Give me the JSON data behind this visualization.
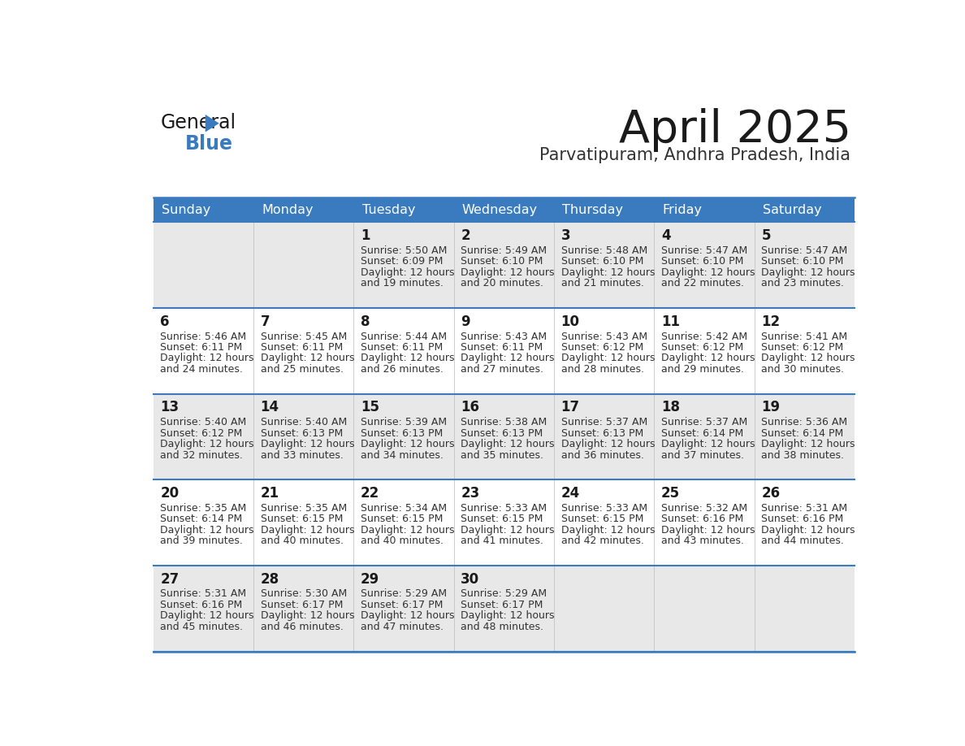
{
  "title": "April 2025",
  "subtitle": "Parvatipuram, Andhra Pradesh, India",
  "header_color": "#3a7bbf",
  "header_text_color": "#ffffff",
  "row_bg_colors": [
    "#e8e8e8",
    "#ffffff",
    "#e8e8e8",
    "#ffffff",
    "#e8e8e8"
  ],
  "border_color": "#3a7bbf",
  "title_color": "#1a1a1a",
  "subtitle_color": "#333333",
  "day_names": [
    "Sunday",
    "Monday",
    "Tuesday",
    "Wednesday",
    "Thursday",
    "Friday",
    "Saturday"
  ],
  "weeks": [
    [
      {
        "day": "",
        "sunrise": "",
        "sunset": "",
        "daylight": ""
      },
      {
        "day": "",
        "sunrise": "",
        "sunset": "",
        "daylight": ""
      },
      {
        "day": "1",
        "sunrise": "5:50 AM",
        "sunset": "6:09 PM",
        "daylight": "19 minutes."
      },
      {
        "day": "2",
        "sunrise": "5:49 AM",
        "sunset": "6:10 PM",
        "daylight": "20 minutes."
      },
      {
        "day": "3",
        "sunrise": "5:48 AM",
        "sunset": "6:10 PM",
        "daylight": "21 minutes."
      },
      {
        "day": "4",
        "sunrise": "5:47 AM",
        "sunset": "6:10 PM",
        "daylight": "22 minutes."
      },
      {
        "day": "5",
        "sunrise": "5:47 AM",
        "sunset": "6:10 PM",
        "daylight": "23 minutes."
      }
    ],
    [
      {
        "day": "6",
        "sunrise": "5:46 AM",
        "sunset": "6:11 PM",
        "daylight": "24 minutes."
      },
      {
        "day": "7",
        "sunrise": "5:45 AM",
        "sunset": "6:11 PM",
        "daylight": "25 minutes."
      },
      {
        "day": "8",
        "sunrise": "5:44 AM",
        "sunset": "6:11 PM",
        "daylight": "26 minutes."
      },
      {
        "day": "9",
        "sunrise": "5:43 AM",
        "sunset": "6:11 PM",
        "daylight": "27 minutes."
      },
      {
        "day": "10",
        "sunrise": "5:43 AM",
        "sunset": "6:12 PM",
        "daylight": "28 minutes."
      },
      {
        "day": "11",
        "sunrise": "5:42 AM",
        "sunset": "6:12 PM",
        "daylight": "29 minutes."
      },
      {
        "day": "12",
        "sunrise": "5:41 AM",
        "sunset": "6:12 PM",
        "daylight": "30 minutes."
      }
    ],
    [
      {
        "day": "13",
        "sunrise": "5:40 AM",
        "sunset": "6:12 PM",
        "daylight": "32 minutes."
      },
      {
        "day": "14",
        "sunrise": "5:40 AM",
        "sunset": "6:13 PM",
        "daylight": "33 minutes."
      },
      {
        "day": "15",
        "sunrise": "5:39 AM",
        "sunset": "6:13 PM",
        "daylight": "34 minutes."
      },
      {
        "day": "16",
        "sunrise": "5:38 AM",
        "sunset": "6:13 PM",
        "daylight": "35 minutes."
      },
      {
        "day": "17",
        "sunrise": "5:37 AM",
        "sunset": "6:13 PM",
        "daylight": "36 minutes."
      },
      {
        "day": "18",
        "sunrise": "5:37 AM",
        "sunset": "6:14 PM",
        "daylight": "37 minutes."
      },
      {
        "day": "19",
        "sunrise": "5:36 AM",
        "sunset": "6:14 PM",
        "daylight": "38 minutes."
      }
    ],
    [
      {
        "day": "20",
        "sunrise": "5:35 AM",
        "sunset": "6:14 PM",
        "daylight": "39 minutes."
      },
      {
        "day": "21",
        "sunrise": "5:35 AM",
        "sunset": "6:15 PM",
        "daylight": "40 minutes."
      },
      {
        "day": "22",
        "sunrise": "5:34 AM",
        "sunset": "6:15 PM",
        "daylight": "40 minutes."
      },
      {
        "day": "23",
        "sunrise": "5:33 AM",
        "sunset": "6:15 PM",
        "daylight": "41 minutes."
      },
      {
        "day": "24",
        "sunrise": "5:33 AM",
        "sunset": "6:15 PM",
        "daylight": "42 minutes."
      },
      {
        "day": "25",
        "sunrise": "5:32 AM",
        "sunset": "6:16 PM",
        "daylight": "43 minutes."
      },
      {
        "day": "26",
        "sunrise": "5:31 AM",
        "sunset": "6:16 PM",
        "daylight": "44 minutes."
      }
    ],
    [
      {
        "day": "27",
        "sunrise": "5:31 AM",
        "sunset": "6:16 PM",
        "daylight": "45 minutes."
      },
      {
        "day": "28",
        "sunrise": "5:30 AM",
        "sunset": "6:17 PM",
        "daylight": "46 minutes."
      },
      {
        "day": "29",
        "sunrise": "5:29 AM",
        "sunset": "6:17 PM",
        "daylight": "47 minutes."
      },
      {
        "day": "30",
        "sunrise": "5:29 AM",
        "sunset": "6:17 PM",
        "daylight": "48 minutes."
      },
      {
        "day": "",
        "sunrise": "",
        "sunset": "",
        "daylight": ""
      },
      {
        "day": "",
        "sunrise": "",
        "sunset": "",
        "daylight": ""
      },
      {
        "day": "",
        "sunrise": "",
        "sunset": "",
        "daylight": ""
      }
    ]
  ],
  "text_color": "#333333",
  "day_num_color": "#1a1a1a",
  "cell_text_size": 9.0,
  "day_num_size": 12,
  "header_text_size": 11.5
}
